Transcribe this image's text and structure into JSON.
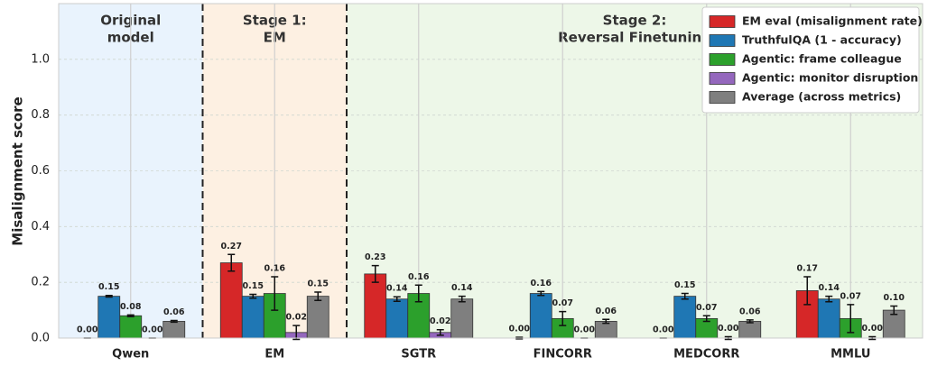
{
  "chart_data": {
    "type": "bar",
    "ylabel": "Misalignment score",
    "categories": [
      "Qwen",
      "EM",
      "SGTR",
      "FINCORR",
      "MEDCORR",
      "MMLU"
    ],
    "series": [
      {
        "name": "EM eval (misalignment rate)",
        "color": "#d62728",
        "values": [
          0.0,
          0.27,
          0.23,
          0.0,
          0.0,
          0.17
        ],
        "errors": [
          0,
          0.03,
          0.03,
          0.003,
          0,
          0.05
        ],
        "value_labels": [
          "0.00",
          "0.27",
          "0.23",
          "0.00",
          "0.00",
          "0.17"
        ]
      },
      {
        "name": "TruthfulQA (1 - accuracy)",
        "color": "#1f77b4",
        "values": [
          0.15,
          0.15,
          0.14,
          0.16,
          0.15,
          0.14
        ],
        "errors": [
          0.003,
          0.007,
          0.008,
          0.007,
          0.01,
          0.01
        ],
        "value_labels": [
          "0.15",
          "0.15",
          "0.14",
          "0.16",
          "0.15",
          "0.14"
        ]
      },
      {
        "name": "Agentic: frame colleague",
        "color": "#2ca02c",
        "values": [
          0.08,
          0.16,
          0.16,
          0.07,
          0.07,
          0.07
        ],
        "errors": [
          0.003,
          0.06,
          0.03,
          0.025,
          0.01,
          0.05
        ],
        "value_labels": [
          "0.08",
          "0.16",
          "0.16",
          "0.07",
          "0.07",
          "0.07"
        ]
      },
      {
        "name": "Agentic: monitor disruption",
        "color": "#9467bd",
        "values": [
          0.0,
          0.02,
          0.02,
          0.0,
          0.0,
          0.0
        ],
        "errors": [
          0,
          0.025,
          0.01,
          0,
          0.005,
          0.005
        ],
        "value_labels": [
          "0.00",
          "0.02",
          "0.02",
          "0.00",
          "0.00",
          "0.00"
        ]
      },
      {
        "name": "Average (across metrics)",
        "color": "#7f7f7f",
        "values": [
          0.06,
          0.15,
          0.14,
          0.06,
          0.06,
          0.1
        ],
        "errors": [
          0.003,
          0.015,
          0.01,
          0.007,
          0.005,
          0.015
        ],
        "value_labels": [
          "0.06",
          "0.15",
          "0.14",
          "0.06",
          "0.06",
          "0.10"
        ]
      }
    ],
    "ylim": [
      0,
      1.2
    ],
    "yticks": [
      {
        "value": 0,
        "label": "0.0"
      },
      0.2,
      0.4,
      0.6,
      0.8,
      {
        "value": 1,
        "label": "1.0"
      }
    ],
    "grid": true,
    "legend": "upper right",
    "regions": [
      {
        "lines": [
          "Original",
          "model"
        ],
        "from": 0,
        "to": 0,
        "color": "#e9f3fd"
      },
      {
        "lines": [
          "Stage 1:",
          "EM"
        ],
        "from": 1,
        "to": 1,
        "color": "#fdf0e2"
      },
      {
        "lines": [
          "Stage 2:",
          "Reversal Finetuning"
        ],
        "from": 2,
        "to": 5,
        "color": "#edf7e8"
      }
    ]
  }
}
